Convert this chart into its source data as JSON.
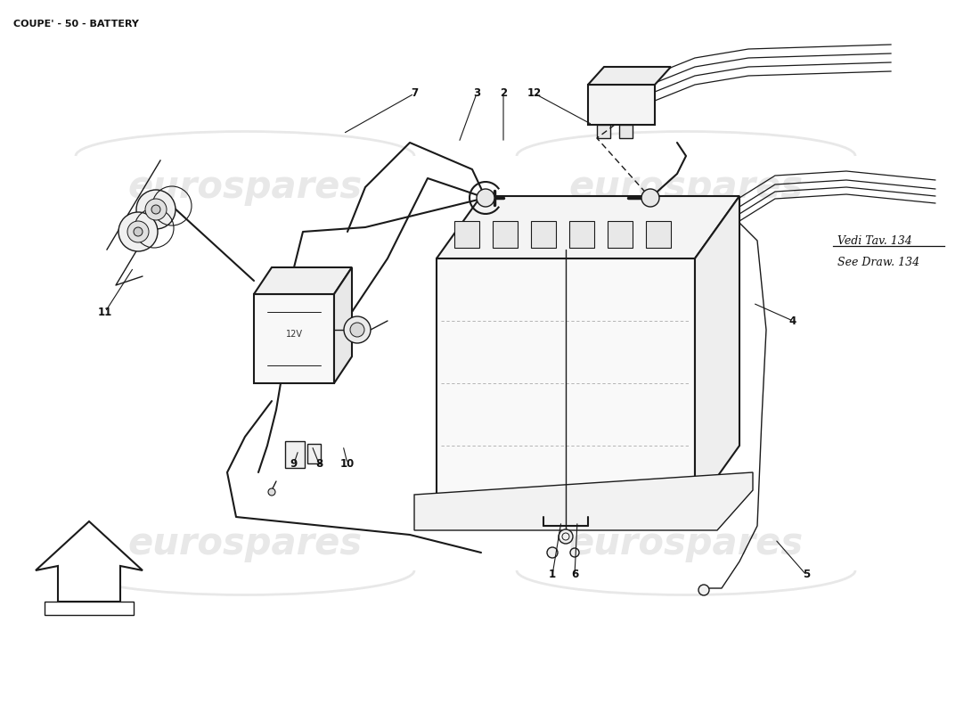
{
  "title": "COUPE' - 50 - BATTERY",
  "title_fontsize": 8,
  "bg_color": "#ffffff",
  "line_color": "#1a1a1a",
  "lw": 1.0,
  "watermark_color": "#cccccc",
  "watermark_alpha": 0.45,
  "vedi_text": "Vedi Tav. 134",
  "see_text": "See Draw. 134",
  "annotation_fontsize": 8.5,
  "label_color": "#111111"
}
